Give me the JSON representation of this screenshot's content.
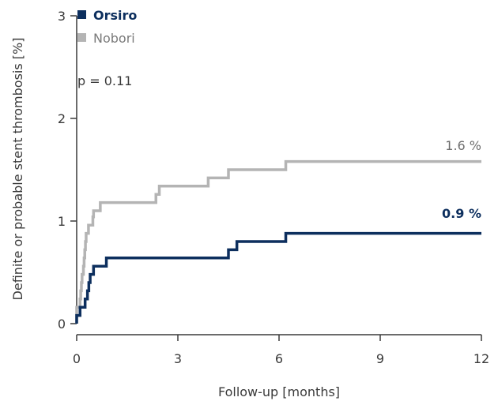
{
  "chart_data": {
    "type": "line",
    "xlabel": "Follow-up [months]",
    "ylabel": "Definite or probable stent thrombosis [%]",
    "xlim": [
      0,
      12
    ],
    "ylim": [
      0,
      3
    ],
    "xticks": [
      0,
      3,
      6,
      9,
      12
    ],
    "yticks": [
      0,
      1,
      2,
      3
    ],
    "grid": false,
    "legend_position": "top-left",
    "annotations": {
      "p_value": "p = 0.11"
    },
    "series": [
      {
        "name": "Orsiro",
        "color": "#0d2f5e",
        "end_label": "0.9 %",
        "end_label_bold": true,
        "points": [
          [
            0,
            0
          ],
          [
            0,
            0.08
          ],
          [
            0.1,
            0.08
          ],
          [
            0.1,
            0.16
          ],
          [
            0.25,
            0.16
          ],
          [
            0.25,
            0.24
          ],
          [
            0.32,
            0.24
          ],
          [
            0.32,
            0.32
          ],
          [
            0.36,
            0.32
          ],
          [
            0.36,
            0.4
          ],
          [
            0.4,
            0.4
          ],
          [
            0.4,
            0.48
          ],
          [
            0.5,
            0.48
          ],
          [
            0.5,
            0.56
          ],
          [
            0.88,
            0.56
          ],
          [
            0.88,
            0.64
          ],
          [
            4.5,
            0.64
          ],
          [
            4.5,
            0.72
          ],
          [
            4.75,
            0.72
          ],
          [
            4.75,
            0.8
          ],
          [
            6.2,
            0.8
          ],
          [
            6.2,
            0.88
          ],
          [
            12,
            0.88
          ]
        ]
      },
      {
        "name": "Nobori",
        "color": "#b4b4b4",
        "end_label": "1.6 %",
        "end_label_bold": false,
        "points": [
          [
            0,
            0
          ],
          [
            0,
            0.16
          ],
          [
            0.1,
            0.16
          ],
          [
            0.1,
            0.24
          ],
          [
            0.12,
            0.24
          ],
          [
            0.12,
            0.32
          ],
          [
            0.14,
            0.32
          ],
          [
            0.14,
            0.4
          ],
          [
            0.16,
            0.4
          ],
          [
            0.16,
            0.48
          ],
          [
            0.2,
            0.48
          ],
          [
            0.2,
            0.56
          ],
          [
            0.22,
            0.56
          ],
          [
            0.22,
            0.64
          ],
          [
            0.24,
            0.64
          ],
          [
            0.24,
            0.72
          ],
          [
            0.26,
            0.72
          ],
          [
            0.26,
            0.8
          ],
          [
            0.28,
            0.8
          ],
          [
            0.28,
            0.88
          ],
          [
            0.35,
            0.88
          ],
          [
            0.35,
            0.96
          ],
          [
            0.48,
            0.96
          ],
          [
            0.48,
            1.04
          ],
          [
            0.5,
            1.04
          ],
          [
            0.5,
            1.1
          ],
          [
            0.7,
            1.1
          ],
          [
            0.7,
            1.18
          ],
          [
            2.35,
            1.18
          ],
          [
            2.35,
            1.26
          ],
          [
            2.45,
            1.26
          ],
          [
            2.45,
            1.34
          ],
          [
            3.9,
            1.34
          ],
          [
            3.9,
            1.42
          ],
          [
            4.5,
            1.42
          ],
          [
            4.5,
            1.5
          ],
          [
            6.2,
            1.5
          ],
          [
            6.2,
            1.58
          ],
          [
            12,
            1.58
          ]
        ]
      }
    ]
  }
}
